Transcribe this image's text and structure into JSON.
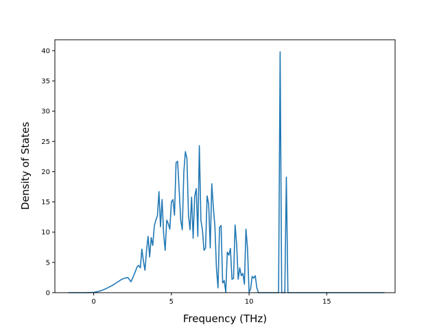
{
  "chart_data": {
    "type": "line",
    "title": "",
    "xlabel": "Frequency (THz)",
    "ylabel": "Density of States",
    "xlim": [
      -2.5,
      19.4
    ],
    "ylim": [
      0,
      41.8
    ],
    "x_ticks": [
      0,
      5,
      10,
      15
    ],
    "y_ticks": [
      0,
      5,
      10,
      15,
      20,
      25,
      30,
      35,
      40
    ],
    "x_tick_labels": [
      "0",
      "5",
      "10",
      "15"
    ],
    "y_tick_labels": [
      "0",
      "5",
      "10",
      "15",
      "20",
      "25",
      "30",
      "35",
      "40"
    ],
    "grid": false,
    "legend": "none",
    "line_color": "#1f77b4",
    "series": [
      {
        "x": [
          -1.6,
          -1.0,
          -0.5,
          0.0,
          0.3,
          0.6,
          0.9,
          1.2,
          1.5,
          1.8,
          2.0,
          2.2,
          2.4,
          2.6,
          2.8,
          2.9,
          3.0,
          3.1,
          3.2,
          3.3,
          3.4,
          3.5,
          3.6,
          3.7,
          3.8,
          3.9,
          4.0,
          4.1,
          4.2,
          4.3,
          4.4,
          4.5,
          4.6,
          4.7,
          4.8,
          4.9,
          5.0,
          5.1,
          5.2,
          5.3,
          5.4,
          5.5,
          5.6,
          5.7,
          5.8,
          5.9,
          6.0,
          6.1,
          6.2,
          6.3,
          6.4,
          6.5,
          6.6,
          6.7,
          6.8,
          6.9,
          7.0,
          7.1,
          7.2,
          7.3,
          7.4,
          7.5,
          7.6,
          7.7,
          7.8,
          7.9,
          8.0,
          8.1,
          8.2,
          8.3,
          8.4,
          8.5,
          8.6,
          8.7,
          8.8,
          8.9,
          9.0,
          9.1,
          9.2,
          9.3,
          9.4,
          9.5,
          9.6,
          9.7,
          9.8,
          9.9,
          10.0,
          10.1,
          10.2,
          10.3,
          10.4,
          10.5,
          10.6,
          10.8,
          11.2,
          11.6,
          11.9,
          12.0,
          12.1,
          12.2,
          12.3,
          12.4,
          12.5,
          12.6,
          13.0,
          15.0,
          17.0,
          18.7
        ],
        "y": [
          0.0,
          0.0,
          0.0,
          0.05,
          0.2,
          0.45,
          0.8,
          1.2,
          1.7,
          2.2,
          2.4,
          2.5,
          1.8,
          3.0,
          4.3,
          4.5,
          4.1,
          7.2,
          5.2,
          3.7,
          7.0,
          9.3,
          5.9,
          9.1,
          7.8,
          11.0,
          12.0,
          12.7,
          16.7,
          10.9,
          15.4,
          9.8,
          7.0,
          12.0,
          11.4,
          10.5,
          15.0,
          15.4,
          12.8,
          21.5,
          21.7,
          17.0,
          12.0,
          10.4,
          19.9,
          23.3,
          22.2,
          12.8,
          10.4,
          15.8,
          9.0,
          15.9,
          17.2,
          9.3,
          24.3,
          12.0,
          10.3,
          7.0,
          7.4,
          16.0,
          14.6,
          7.4,
          18.0,
          14.1,
          11.0,
          4.1,
          0.8,
          10.8,
          11.1,
          1.6,
          2.0,
          0.1,
          6.7,
          6.2,
          7.3,
          2.2,
          2.4,
          11.2,
          8.0,
          2.2,
          4.1,
          2.8,
          3.2,
          1.4,
          10.5,
          7.3,
          0.1,
          0.6,
          2.7,
          2.4,
          2.8,
          0.8,
          0.0,
          0.0,
          0.0,
          0.0,
          0.0,
          39.8,
          0.0,
          0.0,
          0.0,
          19.1,
          0.0,
          0.0,
          0.0,
          0.0,
          0.0,
          0.0
        ]
      }
    ]
  }
}
